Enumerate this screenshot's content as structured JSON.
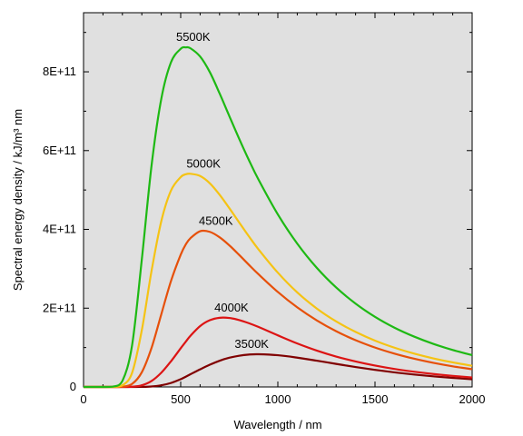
{
  "chart_data": {
    "type": "line",
    "title": "",
    "xlabel": "Wavelength / nm",
    "ylabel": "Spectral energy density / kJ/m³ nm",
    "xlim": [
      0,
      2000
    ],
    "ylim": [
      0,
      950000000000
    ],
    "x_ticks": [
      {
        "value": 0,
        "label": "0"
      },
      {
        "value": 500,
        "label": "500"
      },
      {
        "value": 1000,
        "label": "1000"
      },
      {
        "value": 1500,
        "label": "1500"
      },
      {
        "value": 2000,
        "label": "2000"
      }
    ],
    "y_ticks": [
      {
        "value": 0,
        "label": "0"
      },
      {
        "value": 200000000000,
        "label": "2E+11"
      },
      {
        "value": 400000000000,
        "label": "4E+11"
      },
      {
        "value": 600000000000,
        "label": "6E+11"
      },
      {
        "value": 800000000000,
        "label": "8E+11"
      }
    ],
    "grid": false,
    "background": "#e0e0e0",
    "x": [
      0,
      100,
      150,
      200,
      250,
      300,
      350,
      400,
      450,
      500,
      527,
      550,
      600,
      650,
      700,
      750,
      800,
      850,
      900,
      1000,
      1100,
      1200,
      1300,
      1400,
      1500,
      1600,
      1700,
      1800,
      1900,
      2000
    ],
    "series": [
      {
        "name": "3500K",
        "color": "#800000",
        "peak_x": 828,
        "values": [
          0,
          0,
          1.3e-07,
          0.000238,
          0.0148,
          0.204,
          1.22,
          4.21,
          10.1,
          19.7,
          26.3,
          32.2,
          44.7,
          56.4,
          66.5,
          74.1,
          79.2,
          82.2,
          83.0,
          80.5,
          74.4,
          66.7,
          58.5,
          50.5,
          43.4,
          37.1,
          31.6,
          26.9,
          23.0,
          19.6
        ]
      },
      {
        "name": "4000K",
        "color": "#dc1414",
        "peak_x": 724,
        "values": [
          0,
          0,
          4.34e-05,
          0.0204,
          0.558,
          4.17,
          15.1,
          36.0,
          65.1,
          98.2,
          115.5,
          129.7,
          154.5,
          169.4,
          175.6,
          175.1,
          170.0,
          162.0,
          152.4,
          131.0,
          110.4,
          92.4,
          77.2,
          64.7,
          54.3,
          45.7,
          38.7,
          32.9,
          28.0,
          24.0
        ]
      },
      {
        "name": "4500K",
        "color": "#e6500a",
        "peak_x": 644,
        "values": [
          0,
          0,
          0.00353,
          0.547,
          7.71,
          37.3,
          99.1,
          184.1,
          268.8,
          335.7,
          362.5,
          377.5,
          395.4,
          393.7,
          380.0,
          359.6,
          335.6,
          310.6,
          286.3,
          241.1,
          202.0,
          169.1,
          141.5,
          118.7,
          100.0,
          84.6,
          71.8,
          61.2,
          52.3,
          45.1
        ]
      },
      {
        "name": "5000K",
        "color": "#f5c314",
        "peak_x": 580,
        "values": [
          0,
          0,
          0.0799,
          4.07,
          36.1,
          144.4,
          294.6,
          420.4,
          498.4,
          532.6,
          540.0,
          541.1,
          535.5,
          517.0,
          488.1,
          454.1,
          418.2,
          383.0,
          349.6,
          290.1,
          239.9,
          199.3,
          166.4,
          139.8,
          117.7,
          99.7,
          84.9,
          72.6,
          62.3,
          53.7
        ]
      },
      {
        "name": "5500K",
        "color": "#1eb914",
        "peak_x": 527,
        "values": [
          0,
          0,
          0.73,
          15.2,
          106.2,
          323.9,
          561.9,
          730.9,
          824.0,
          858.3,
          862.0,
          859.8,
          838.8,
          799.1,
          745.4,
          688.0,
          631.2,
          577.1,
          526.8,
          437.9,
          363.8,
          302.6,
          252.5,
          211.6,
          178.0,
          150.5,
          128.1,
          109.4,
          93.8,
          80.8
        ]
      }
    ],
    "values_scale": 1000000000
  }
}
